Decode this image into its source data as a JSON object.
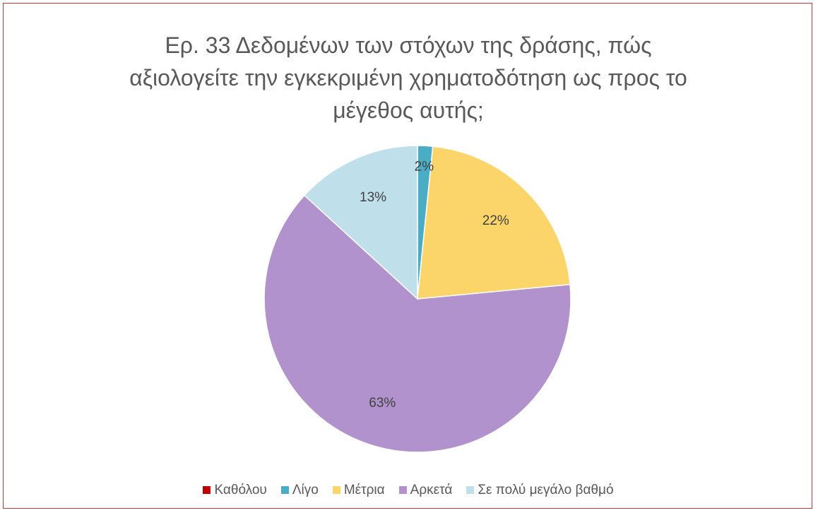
{
  "chart_data": {
    "type": "pie",
    "title_lines": [
      "Ερ. 33 Δεδομένων των στόχων της δράσης, πώς",
      "αξιολογείτε την εγκεκριμένη χρηματοδότηση ως προς το",
      "μέγεθος αυτής;"
    ],
    "categories": [
      "Καθόλου",
      "Λίγο",
      "Μέτρια",
      "Αρκετά",
      "Σε πολύ μεγάλο βαθμό"
    ],
    "values": [
      0,
      1.6,
      21.9,
      63.3,
      13.2
    ],
    "data_labels": [
      "",
      "2%",
      "22%",
      "63%",
      "13%"
    ],
    "colors": [
      "#c00000",
      "#4bacc6",
      "#fcd56a",
      "#b192cc",
      "#bfe0ea"
    ],
    "legend_position": "bottom",
    "start_angle_deg": 0,
    "direction": "clockwise"
  }
}
